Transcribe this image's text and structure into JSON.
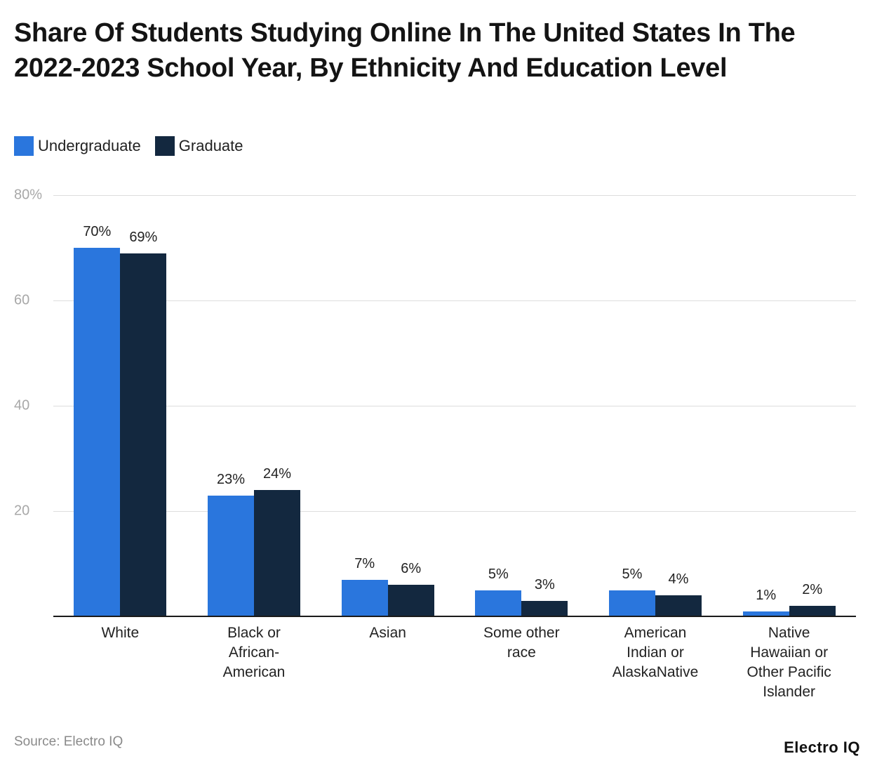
{
  "title": "Share Of Students Studying Online In The United States In The 2022-2023 School Year, By Ethnicity And Education Level",
  "legend": [
    {
      "label": "Undergraduate",
      "color": "#2a76dd"
    },
    {
      "label": "Graduate",
      "color": "#13283f"
    }
  ],
  "source": "Source: Electro IQ",
  "brand": "Electro IQ",
  "chart_data": {
    "type": "bar",
    "title": "Share Of Students Studying Online In The United States In The 2022-2023 School Year, By Ethnicity And Education Level",
    "xlabel": "",
    "ylabel": "",
    "ylim": [
      0,
      80
    ],
    "yticks": [
      "80%",
      "60",
      "40",
      "20"
    ],
    "ytick_values": [
      80,
      60,
      40,
      20
    ],
    "grid": true,
    "legend_position": "top-left",
    "categories": [
      "White",
      "Black or African-American",
      "Asian",
      "Some other race",
      "American Indian or AlaskaNative",
      "Native Hawaiian or Other Pacific Islander"
    ],
    "category_label_lines": [
      [
        "White"
      ],
      [
        "Black or",
        "African-",
        "American"
      ],
      [
        "Asian"
      ],
      [
        "Some other",
        "race"
      ],
      [
        "American",
        "Indian or",
        "AlaskaNative"
      ],
      [
        "Native",
        "Hawaiian or",
        "Other Pacific",
        "Islander"
      ]
    ],
    "series": [
      {
        "name": "Undergraduate",
        "color": "#2a76dd",
        "values": [
          70,
          23,
          7,
          5,
          5,
          1
        ],
        "labels": [
          "70%",
          "23%",
          "7%",
          "5%",
          "5%",
          "1%"
        ]
      },
      {
        "name": "Graduate",
        "color": "#13283f",
        "values": [
          69,
          24,
          6,
          3,
          4,
          2
        ],
        "labels": [
          "69%",
          "24%",
          "6%",
          "3%",
          "4%",
          "2%"
        ]
      }
    ]
  }
}
